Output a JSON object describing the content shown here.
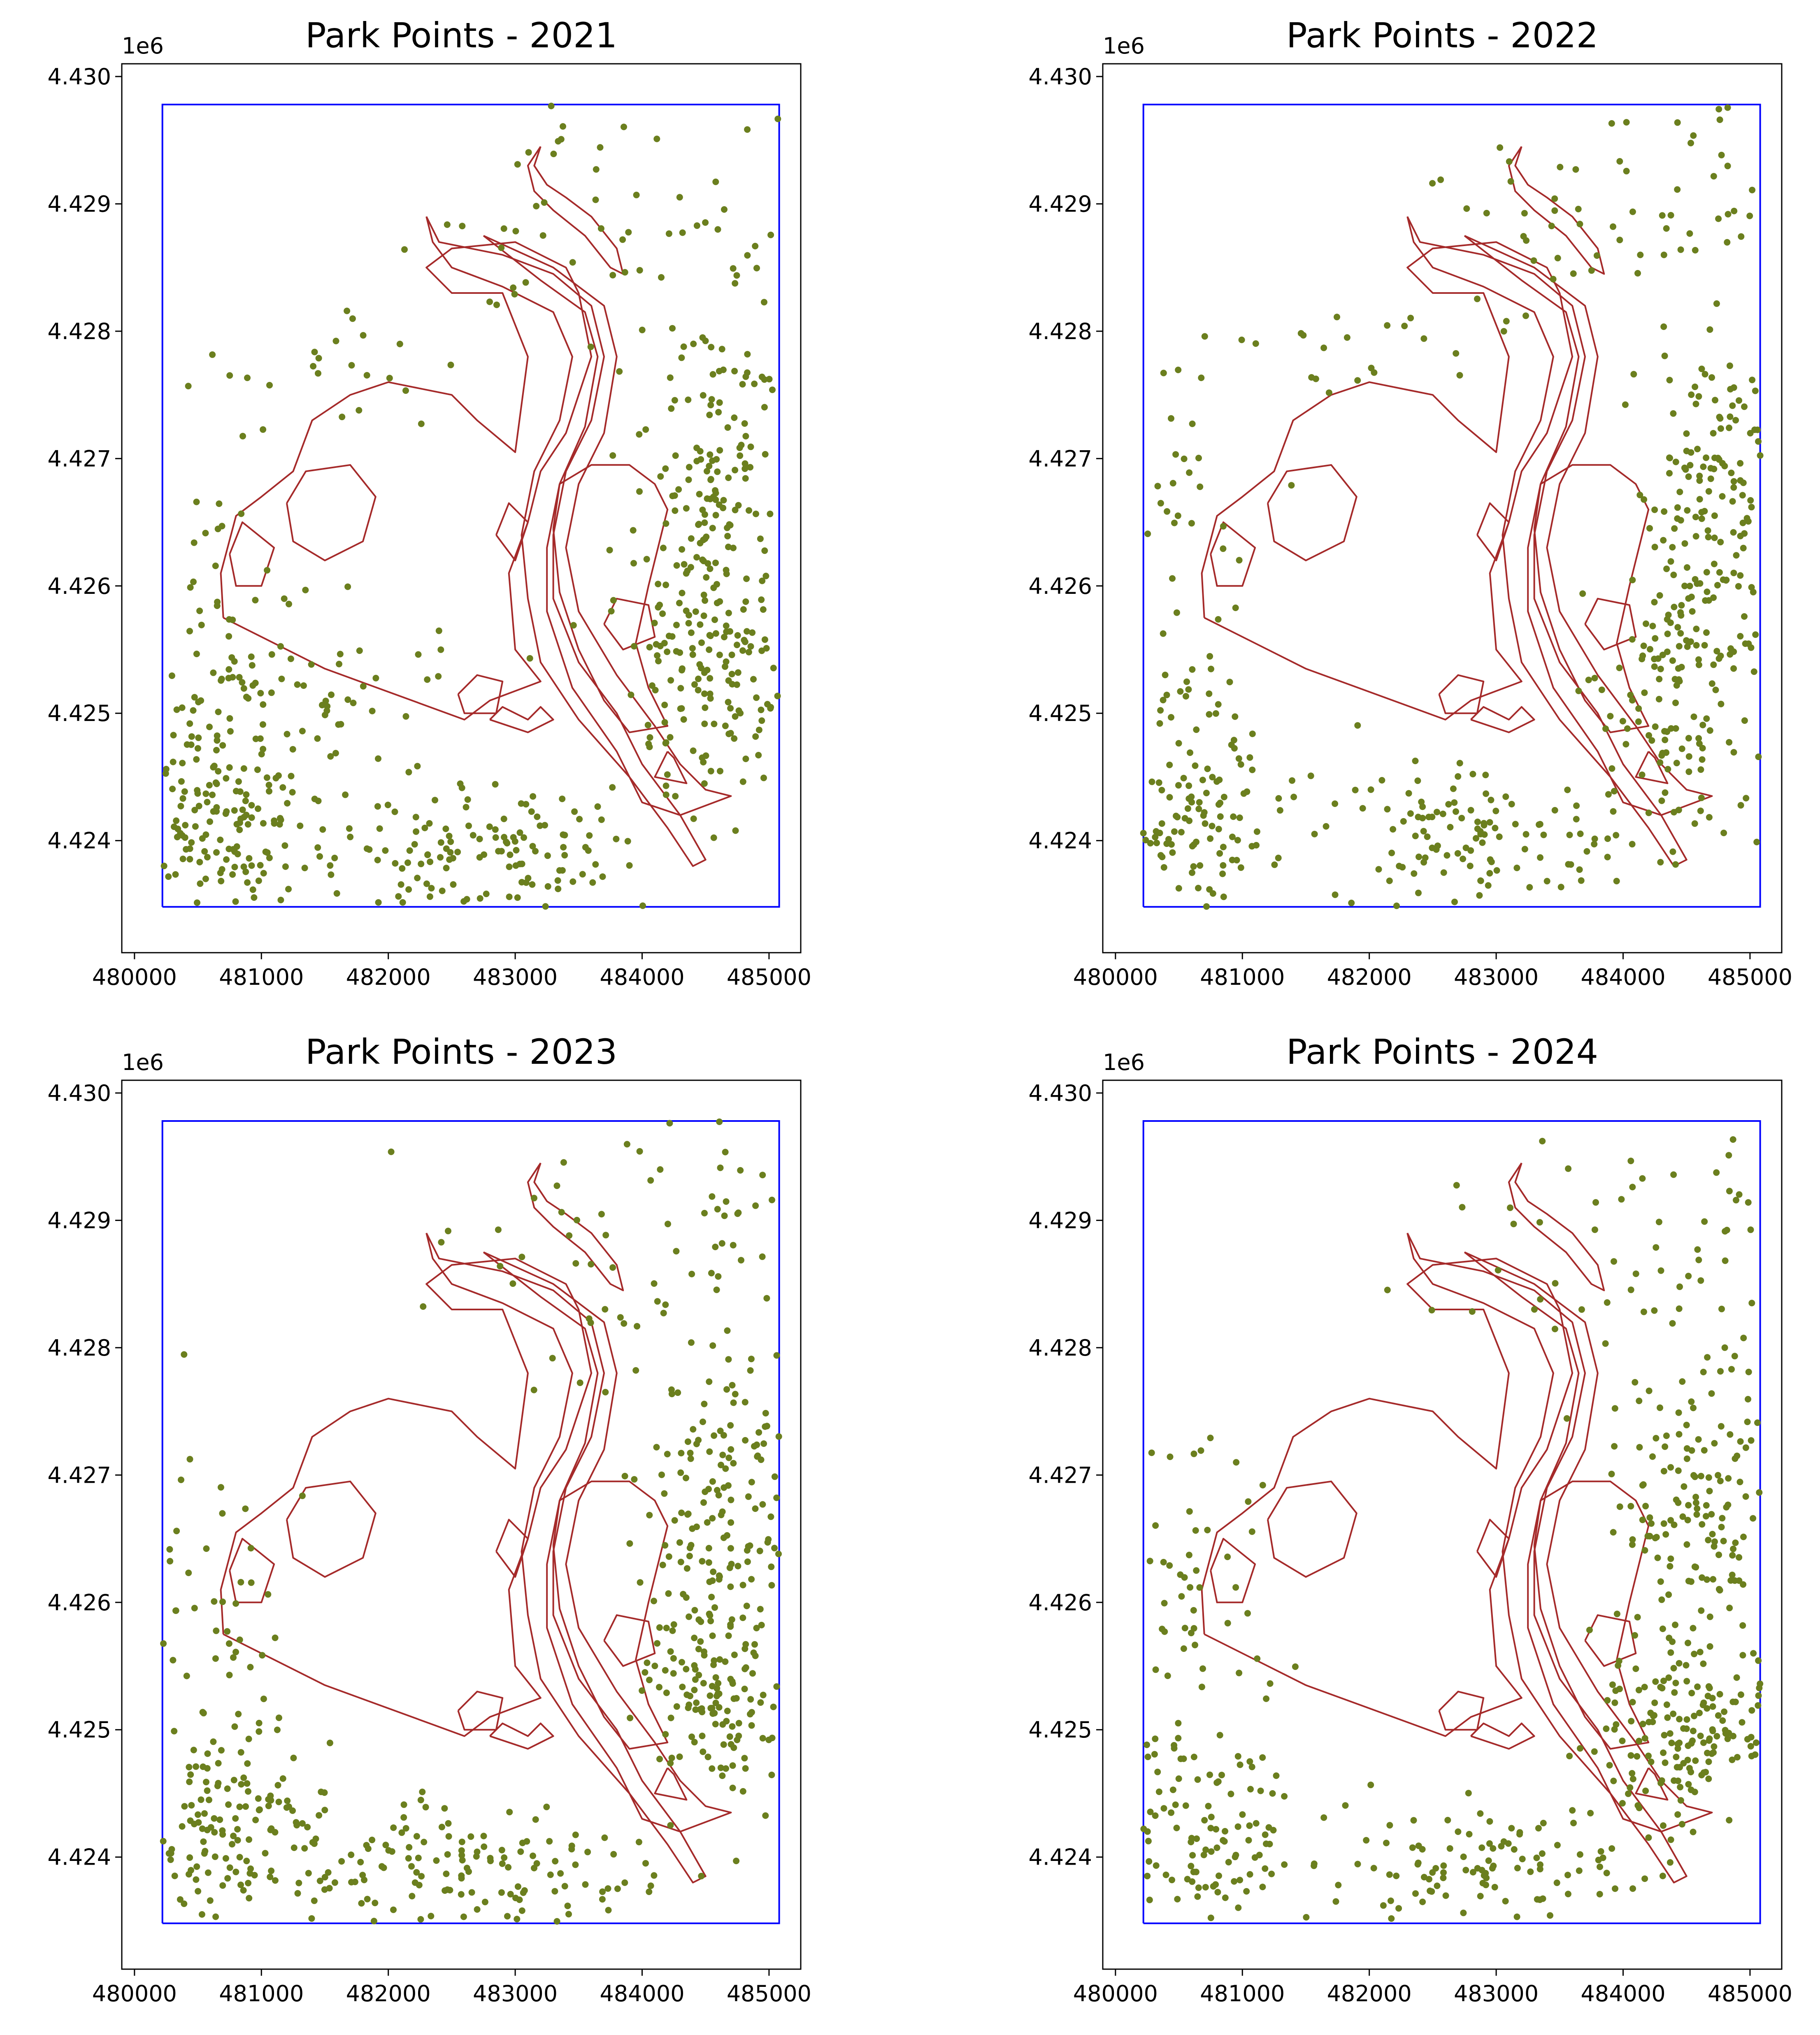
{
  "chart_data": [
    {
      "type": "scatter",
      "title": "Park Points - 2021",
      "xlim": [
        479900,
        485250
      ],
      "ylim": [
        4423120,
        4430100
      ],
      "xticks": [
        480000,
        481000,
        482000,
        483000,
        484000,
        485000
      ],
      "xtick_labels": [
        "480000",
        "481000",
        "482000",
        "483000",
        "484000",
        "485000"
      ],
      "yticks": [
        4424000,
        4425000,
        4426000,
        4427000,
        4428000,
        4429000,
        4430000
      ],
      "ytick_labels": [
        "4.424",
        "4.425",
        "4.426",
        "4.427",
        "4.428",
        "4.429",
        "4.430"
      ],
      "y_offset_label": "1e6",
      "boundary_color": "#0000ff",
      "park_outline_color": "#a52a2a",
      "point_color": "#6b7f1e",
      "clusters": [
        {
          "x": 480700,
          "y": 4424200,
          "sx": 380,
          "sy": 420,
          "n": 160
        },
        {
          "x": 482700,
          "y": 4423900,
          "sx": 650,
          "sy": 280,
          "n": 140
        },
        {
          "x": 481200,
          "y": 4425200,
          "sx": 600,
          "sy": 350,
          "n": 70
        },
        {
          "x": 484600,
          "y": 4426800,
          "sx": 350,
          "sy": 600,
          "n": 150
        },
        {
          "x": 484550,
          "y": 4425300,
          "sx": 330,
          "sy": 500,
          "n": 150
        },
        {
          "x": 483400,
          "y": 4428900,
          "sx": 550,
          "sy": 450,
          "n": 40
        },
        {
          "x": 484800,
          "y": 4428300,
          "sx": 250,
          "sy": 700,
          "n": 30
        },
        {
          "x": 480600,
          "y": 4426300,
          "sx": 350,
          "sy": 600,
          "n": 35
        },
        {
          "x": 481800,
          "y": 4427800,
          "sx": 400,
          "sy": 300,
          "n": 20
        }
      ]
    },
    {
      "type": "scatter",
      "title": "Park Points - 2022",
      "xlim": [
        479900,
        485250
      ],
      "ylim": [
        4423120,
        4430100
      ],
      "xticks": [
        480000,
        481000,
        482000,
        483000,
        484000,
        485000
      ],
      "xtick_labels": [
        "480000",
        "481000",
        "482000",
        "483000",
        "484000",
        "485000"
      ],
      "yticks": [
        4424000,
        4425000,
        4426000,
        4427000,
        4428000,
        4429000,
        4430000
      ],
      "ytick_labels": [
        "4.424",
        "4.425",
        "4.426",
        "4.427",
        "4.428",
        "4.429",
        "4.430"
      ],
      "y_offset_label": "1e6",
      "boundary_color": "#0000ff",
      "park_outline_color": "#a52a2a",
      "point_color": "#6b7f1e",
      "clusters": [
        {
          "x": 480700,
          "y": 4424300,
          "sx": 380,
          "sy": 450,
          "n": 130
        },
        {
          "x": 482900,
          "y": 4424000,
          "sx": 650,
          "sy": 300,
          "n": 120
        },
        {
          "x": 484700,
          "y": 4426600,
          "sx": 300,
          "sy": 700,
          "n": 150
        },
        {
          "x": 484500,
          "y": 4425100,
          "sx": 350,
          "sy": 500,
          "n": 130
        },
        {
          "x": 483600,
          "y": 4428800,
          "sx": 600,
          "sy": 500,
          "n": 45
        },
        {
          "x": 480500,
          "y": 4426400,
          "sx": 300,
          "sy": 700,
          "n": 40
        },
        {
          "x": 484700,
          "y": 4429000,
          "sx": 300,
          "sy": 500,
          "n": 25
        },
        {
          "x": 481900,
          "y": 4427900,
          "sx": 450,
          "sy": 250,
          "n": 20
        }
      ]
    },
    {
      "type": "scatter",
      "title": "Park Points - 2023",
      "xlim": [
        479900,
        485250
      ],
      "ylim": [
        4423120,
        4430100
      ],
      "xticks": [
        480000,
        481000,
        482000,
        483000,
        484000,
        485000
      ],
      "xtick_labels": [
        "480000",
        "481000",
        "482000",
        "483000",
        "484000",
        "485000"
      ],
      "yticks": [
        4424000,
        4425000,
        4426000,
        4427000,
        4428000,
        4429000,
        4430000
      ],
      "ytick_labels": [
        "4.424",
        "4.425",
        "4.426",
        "4.427",
        "4.428",
        "4.429",
        "4.430"
      ],
      "y_offset_label": "1e6",
      "boundary_color": "#0000ff",
      "park_outline_color": "#a52a2a",
      "point_color": "#6b7f1e",
      "clusters": [
        {
          "x": 480700,
          "y": 4424200,
          "sx": 400,
          "sy": 450,
          "n": 170
        },
        {
          "x": 482700,
          "y": 4423900,
          "sx": 700,
          "sy": 300,
          "n": 140
        },
        {
          "x": 484600,
          "y": 4426700,
          "sx": 330,
          "sy": 650,
          "n": 140
        },
        {
          "x": 484600,
          "y": 4425300,
          "sx": 300,
          "sy": 450,
          "n": 140
        },
        {
          "x": 483600,
          "y": 4428700,
          "sx": 650,
          "sy": 500,
          "n": 50
        },
        {
          "x": 480500,
          "y": 4426300,
          "sx": 350,
          "sy": 700,
          "n": 45
        },
        {
          "x": 484800,
          "y": 4428400,
          "sx": 250,
          "sy": 700,
          "n": 25
        }
      ]
    },
    {
      "type": "scatter",
      "title": "Park Points - 2024",
      "xlim": [
        479900,
        485250
      ],
      "ylim": [
        4423120,
        4430100
      ],
      "xticks": [
        480000,
        481000,
        482000,
        483000,
        484000,
        485000
      ],
      "xtick_labels": [
        "480000",
        "481000",
        "482000",
        "483000",
        "484000",
        "485000"
      ],
      "yticks": [
        4424000,
        4425000,
        4426000,
        4427000,
        4428000,
        4429000,
        4430000
      ],
      "ytick_labels": [
        "4.424",
        "4.425",
        "4.426",
        "4.427",
        "4.428",
        "4.429",
        "4.430"
      ],
      "y_offset_label": "1e6",
      "boundary_color": "#0000ff",
      "park_outline_color": "#a52a2a",
      "point_color": "#6b7f1e",
      "clusters": [
        {
          "x": 480700,
          "y": 4424300,
          "sx": 380,
          "sy": 500,
          "n": 130
        },
        {
          "x": 483000,
          "y": 4423900,
          "sx": 600,
          "sy": 300,
          "n": 120
        },
        {
          "x": 484600,
          "y": 4426700,
          "sx": 330,
          "sy": 600,
          "n": 150
        },
        {
          "x": 484550,
          "y": 4425000,
          "sx": 350,
          "sy": 350,
          "n": 170
        },
        {
          "x": 483700,
          "y": 4428700,
          "sx": 600,
          "sy": 450,
          "n": 40
        },
        {
          "x": 480600,
          "y": 4426300,
          "sx": 350,
          "sy": 600,
          "n": 50
        },
        {
          "x": 484800,
          "y": 4428600,
          "sx": 250,
          "sy": 600,
          "n": 25
        }
      ]
    }
  ],
  "park_outlines": [
    [
      [
        480700,
        4425750
      ],
      [
        480680,
        4426100
      ],
      [
        480800,
        4426550
      ],
      [
        481000,
        4426700
      ],
      [
        481250,
        4426900
      ],
      [
        481400,
        4427300
      ],
      [
        481700,
        4427500
      ],
      [
        482000,
        4427600
      ],
      [
        482500,
        4427500
      ],
      [
        482700,
        4427300
      ],
      [
        483000,
        4427050
      ],
      [
        483100,
        4427800
      ],
      [
        482900,
        4428300
      ],
      [
        482500,
        4428300
      ],
      [
        482300,
        4428500
      ],
      [
        482500,
        4428650
      ],
      [
        483000,
        4428700
      ],
      [
        483400,
        4428500
      ],
      [
        483500,
        4428300
      ],
      [
        483600,
        4427800
      ],
      [
        483400,
        4427200
      ],
      [
        483200,
        4426900
      ],
      [
        483100,
        4426500
      ],
      [
        482950,
        4426100
      ],
      [
        483000,
        4425500
      ],
      [
        483200,
        4425250
      ],
      [
        482800,
        4425100
      ],
      [
        482600,
        4424950
      ],
      [
        481500,
        4425350
      ],
      [
        480700,
        4425750
      ]
    ],
    [
      [
        482300,
        4428900
      ],
      [
        482400,
        4428700
      ],
      [
        482900,
        4428600
      ],
      [
        483300,
        4428450
      ],
      [
        483600,
        4428200
      ],
      [
        483700,
        4427800
      ],
      [
        483600,
        4427300
      ],
      [
        483400,
        4426900
      ],
      [
        483300,
        4426400
      ],
      [
        483300,
        4425900
      ],
      [
        483500,
        4425400
      ],
      [
        483800,
        4425000
      ],
      [
        484000,
        4424600
      ],
      [
        484300,
        4424200
      ],
      [
        484500,
        4423850
      ],
      [
        484400,
        4423800
      ],
      [
        484200,
        4424100
      ],
      [
        483900,
        4424500
      ],
      [
        483500,
        4424950
      ],
      [
        483200,
        4425400
      ],
      [
        483100,
        4425900
      ],
      [
        483050,
        4426400
      ],
      [
        483150,
        4426900
      ],
      [
        483350,
        4427300
      ],
      [
        483450,
        4427800
      ],
      [
        483300,
        4428150
      ],
      [
        482900,
        4428350
      ],
      [
        482500,
        4428500
      ],
      [
        482350,
        4428700
      ],
      [
        482300,
        4428900
      ]
    ],
    [
      [
        482750,
        4428750
      ],
      [
        483300,
        4428500
      ],
      [
        483700,
        4428200
      ],
      [
        483800,
        4427800
      ],
      [
        483700,
        4427200
      ],
      [
        483500,
        4426800
      ],
      [
        483400,
        4426300
      ],
      [
        483500,
        4425800
      ],
      [
        483800,
        4425300
      ],
      [
        484100,
        4424900
      ],
      [
        484300,
        4424600
      ],
      [
        484500,
        4424400
      ],
      [
        484700,
        4424350
      ],
      [
        484300,
        4424200
      ],
      [
        484000,
        4424300
      ],
      [
        483800,
        4424700
      ],
      [
        483450,
        4425200
      ],
      [
        483250,
        4425800
      ],
      [
        483250,
        4426300
      ],
      [
        483350,
        4426800
      ],
      [
        483550,
        4427250
      ],
      [
        483650,
        4427800
      ],
      [
        483550,
        4428150
      ],
      [
        483200,
        4428400
      ],
      [
        482750,
        4428750
      ]
    ],
    [
      [
        483300,
        4426450
      ],
      [
        483350,
        4426800
      ],
      [
        483600,
        4426950
      ],
      [
        483900,
        4426950
      ],
      [
        484100,
        4426800
      ],
      [
        484200,
        4426600
      ],
      [
        484050,
        4426000
      ],
      [
        483950,
        4425550
      ],
      [
        484050,
        4425200
      ],
      [
        484200,
        4424900
      ],
      [
        483900,
        4424850
      ],
      [
        483700,
        4425100
      ],
      [
        483500,
        4425500
      ],
      [
        483350,
        4425950
      ],
      [
        483300,
        4426450
      ]
    ],
    [
      [
        481200,
        4426650
      ],
      [
        481350,
        4426900
      ],
      [
        481700,
        4426950
      ],
      [
        481900,
        4426700
      ],
      [
        481800,
        4426350
      ],
      [
        481500,
        4426200
      ],
      [
        481250,
        4426350
      ],
      [
        481200,
        4426650
      ]
    ],
    [
      [
        480750,
        4426250
      ],
      [
        480850,
        4426500
      ],
      [
        481100,
        4426300
      ],
      [
        481000,
        4426000
      ],
      [
        480800,
        4426000
      ],
      [
        480750,
        4426250
      ]
    ],
    [
      [
        482850,
        4426400
      ],
      [
        482950,
        4426650
      ],
      [
        483100,
        4426500
      ],
      [
        483000,
        4426200
      ],
      [
        482850,
        4426400
      ]
    ],
    [
      [
        483700,
        4425700
      ],
      [
        483800,
        4425900
      ],
      [
        484050,
        4425850
      ],
      [
        484100,
        4425600
      ],
      [
        483850,
        4425500
      ],
      [
        483700,
        4425700
      ]
    ],
    [
      [
        482550,
        4425150
      ],
      [
        482700,
        4425300
      ],
      [
        482900,
        4425250
      ],
      [
        482850,
        4425000
      ],
      [
        482600,
        4425000
      ],
      [
        482550,
        4425150
      ]
    ],
    [
      [
        483200,
        4429450
      ],
      [
        483150,
        4429300
      ],
      [
        483250,
        4429150
      ],
      [
        483400,
        4429050
      ],
      [
        483600,
        4428900
      ],
      [
        483800,
        4428650
      ],
      [
        483850,
        4428450
      ],
      [
        483750,
        4428500
      ],
      [
        483550,
        4428750
      ],
      [
        483300,
        4428950
      ],
      [
        483150,
        4429100
      ],
      [
        483100,
        4429300
      ],
      [
        483200,
        4429450
      ]
    ],
    [
      [
        482800,
        4424950
      ],
      [
        482900,
        4425050
      ],
      [
        483100,
        4424950
      ],
      [
        483200,
        4425050
      ],
      [
        483300,
        4424950
      ],
      [
        483100,
        4424850
      ],
      [
        482800,
        4424950
      ]
    ],
    [
      [
        484200,
        4424700
      ],
      [
        484100,
        4424500
      ],
      [
        484350,
        4424450
      ],
      [
        484250,
        4424650
      ],
      [
        484200,
        4424700
      ]
    ]
  ],
  "boundary": [
    [
      480220,
      4423480
    ],
    [
      485080,
      4423480
    ],
    [
      485080,
      4429780
    ],
    [
      480220,
      4429780
    ],
    [
      480220,
      4423480
    ]
  ]
}
